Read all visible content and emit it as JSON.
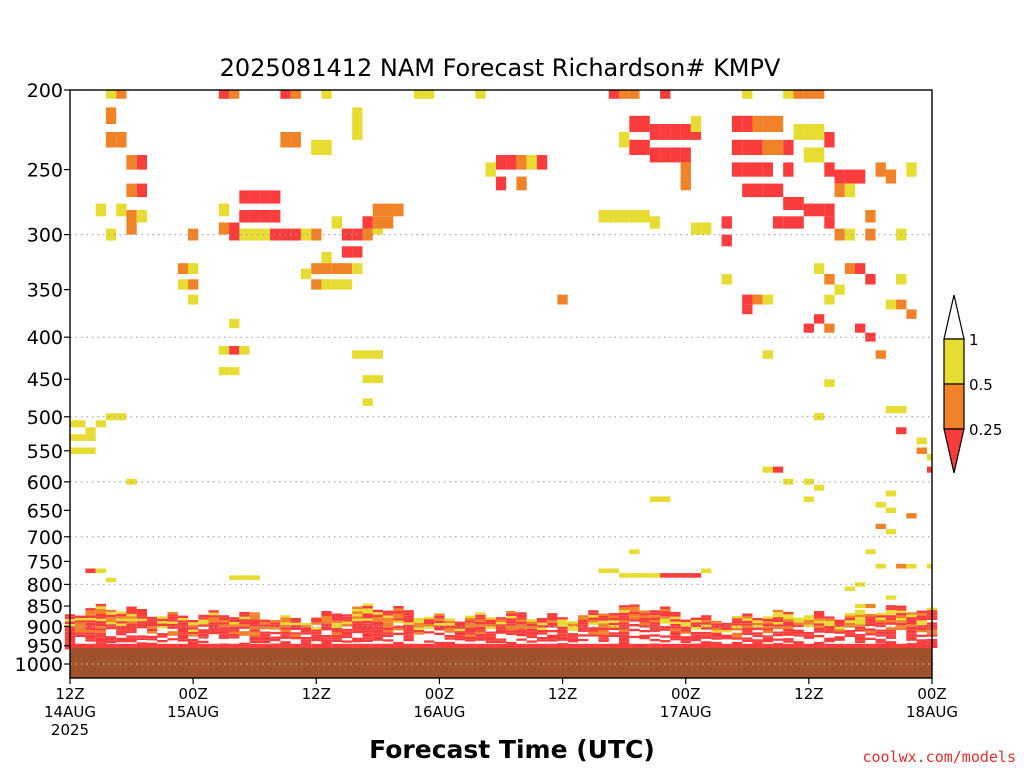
{
  "chart_data": {
    "type": "heatmap",
    "title": "2025081412 NAM Forecast Richardson# KMPV",
    "xlabel": "Forecast Time (UTC)",
    "credit": "coolwx.com/models",
    "y_axis": {
      "scale": "pressure",
      "range": [
        1040,
        200
      ],
      "ticks": [
        200,
        250,
        300,
        350,
        400,
        450,
        500,
        550,
        600,
        650,
        700,
        750,
        800,
        850,
        900,
        950,
        1000
      ],
      "tick_labels": [
        "200",
        "250",
        "300",
        "350",
        "400",
        "450",
        "500",
        "550",
        "600",
        "650",
        "700",
        "750",
        "800",
        "850",
        "900",
        "950",
        "1000"
      ],
      "dotted_grid_at": [
        300,
        400,
        500,
        600,
        700,
        800,
        900,
        1000
      ]
    },
    "x_axis": {
      "unit": "hours from 2025-08-14 12Z",
      "range": [
        0,
        84
      ],
      "ticks": [
        {
          "h": 0,
          "l1": "12Z",
          "l2": "14AUG",
          "l3": "2025"
        },
        {
          "h": 12,
          "l1": "00Z",
          "l2": "15AUG",
          "l3": ""
        },
        {
          "h": 24,
          "l1": "12Z",
          "l2": "",
          "l3": ""
        },
        {
          "h": 36,
          "l1": "00Z",
          "l2": "16AUG",
          "l3": ""
        },
        {
          "h": 48,
          "l1": "12Z",
          "l2": "",
          "l3": ""
        },
        {
          "h": 60,
          "l1": "00Z",
          "l2": "17AUG",
          "l3": ""
        },
        {
          "h": 72,
          "l1": "12Z",
          "l2": "",
          "l3": ""
        },
        {
          "h": 84,
          "l1": "00Z",
          "l2": "18AUG",
          "l3": ""
        }
      ]
    },
    "legend": {
      "placement": "right",
      "labels": [
        "1",
        "0.5",
        "0.25"
      ],
      "colors": {
        "low": "#fa3c3c",
        "mid": "#f08228",
        "high": "#e6dc32",
        "ground": "#a0522d"
      }
    },
    "cells": [
      [
        4,
        200,
        "high"
      ],
      [
        4,
        215,
        "orange"
      ],
      [
        5,
        200,
        "orange"
      ],
      [
        15,
        200,
        "red"
      ],
      [
        16,
        200,
        "orange"
      ],
      [
        21,
        200,
        "red"
      ],
      [
        22,
        200,
        "orange"
      ],
      [
        25,
        200,
        "high"
      ],
      [
        34,
        200,
        "high"
      ],
      [
        35,
        200,
        "high"
      ],
      [
        40,
        200,
        "high"
      ],
      [
        53,
        200,
        "red"
      ],
      [
        54,
        200,
        "orange"
      ],
      [
        55,
        200,
        "orange"
      ],
      [
        58,
        200,
        "red"
      ],
      [
        66,
        200,
        "high"
      ],
      [
        70,
        200,
        "high"
      ],
      [
        71,
        200,
        "orange"
      ],
      [
        72,
        200,
        "orange"
      ],
      [
        73,
        200,
        "orange"
      ],
      [
        28,
        215,
        "high"
      ],
      [
        28,
        225,
        "high"
      ],
      [
        4,
        230,
        "orange"
      ],
      [
        5,
        230,
        "orange"
      ],
      [
        21,
        230,
        "orange"
      ],
      [
        22,
        230,
        "orange"
      ],
      [
        24,
        235,
        "high"
      ],
      [
        25,
        235,
        "high"
      ],
      [
        55,
        220,
        "red"
      ],
      [
        56,
        220,
        "red"
      ],
      [
        57,
        225,
        "red"
      ],
      [
        58,
        225,
        "red"
      ],
      [
        59,
        225,
        "red"
      ],
      [
        60,
        225,
        "red"
      ],
      [
        61,
        225,
        "red"
      ],
      [
        55,
        235,
        "red"
      ],
      [
        56,
        235,
        "red"
      ],
      [
        57,
        240,
        "red"
      ],
      [
        58,
        240,
        "red"
      ],
      [
        59,
        240,
        "red"
      ],
      [
        60,
        240,
        "red"
      ],
      [
        60,
        250,
        "orange"
      ],
      [
        60,
        260,
        "orange"
      ],
      [
        54,
        230,
        "high"
      ],
      [
        61,
        220,
        "high"
      ],
      [
        65,
        220,
        "red"
      ],
      [
        66,
        220,
        "red"
      ],
      [
        67,
        220,
        "orange"
      ],
      [
        68,
        220,
        "orange"
      ],
      [
        69,
        220,
        "orange"
      ],
      [
        65,
        235,
        "red"
      ],
      [
        66,
        235,
        "red"
      ],
      [
        67,
        235,
        "red"
      ],
      [
        68,
        235,
        "orange"
      ],
      [
        69,
        235,
        "orange"
      ],
      [
        70,
        235,
        "red"
      ],
      [
        65,
        250,
        "red"
      ],
      [
        66,
        250,
        "red"
      ],
      [
        67,
        250,
        "red"
      ],
      [
        68,
        250,
        "red"
      ],
      [
        70,
        250,
        "red"
      ],
      [
        71,
        225,
        "high"
      ],
      [
        72,
        225,
        "high"
      ],
      [
        73,
        225,
        "high"
      ],
      [
        74,
        230,
        "red"
      ],
      [
        72,
        240,
        "high"
      ],
      [
        73,
        240,
        "high"
      ],
      [
        74,
        250,
        "red"
      ],
      [
        75,
        255,
        "red"
      ],
      [
        76,
        255,
        "red"
      ],
      [
        77,
        255,
        "red"
      ],
      [
        66,
        265,
        "red"
      ],
      [
        67,
        265,
        "red"
      ],
      [
        68,
        265,
        "red"
      ],
      [
        69,
        265,
        "red"
      ],
      [
        70,
        275,
        "red"
      ],
      [
        71,
        275,
        "red"
      ],
      [
        72,
        280,
        "red"
      ],
      [
        73,
        280,
        "red"
      ],
      [
        74,
        280,
        "red"
      ],
      [
        75,
        265,
        "orange"
      ],
      [
        76,
        265,
        "high"
      ],
      [
        79,
        250,
        "orange"
      ],
      [
        80,
        255,
        "orange"
      ],
      [
        82,
        250,
        "high"
      ],
      [
        6,
        245,
        "orange"
      ],
      [
        7,
        245,
        "red"
      ],
      [
        6,
        265,
        "orange"
      ],
      [
        7,
        265,
        "red"
      ],
      [
        3,
        280,
        "high"
      ],
      [
        5,
        280,
        "high"
      ],
      [
        6,
        285,
        "orange"
      ],
      [
        7,
        285,
        "high"
      ],
      [
        6,
        295,
        "orange"
      ],
      [
        42,
        245,
        "red"
      ],
      [
        43,
        245,
        "red"
      ],
      [
        44,
        245,
        "orange"
      ],
      [
        45,
        245,
        "high"
      ],
      [
        46,
        245,
        "red"
      ],
      [
        41,
        250,
        "high"
      ],
      [
        42,
        260,
        "red"
      ],
      [
        44,
        260,
        "orange"
      ],
      [
        17,
        270,
        "red"
      ],
      [
        18,
        270,
        "red"
      ],
      [
        19,
        270,
        "red"
      ],
      [
        20,
        270,
        "red"
      ],
      [
        17,
        285,
        "red"
      ],
      [
        18,
        285,
        "red"
      ],
      [
        19,
        285,
        "red"
      ],
      [
        20,
        285,
        "red"
      ],
      [
        15,
        280,
        "high"
      ],
      [
        15,
        295,
        "orange"
      ],
      [
        16,
        295,
        "red"
      ],
      [
        17,
        300,
        "high"
      ],
      [
        18,
        300,
        "high"
      ],
      [
        19,
        300,
        "high"
      ],
      [
        20,
        300,
        "red"
      ],
      [
        21,
        300,
        "red"
      ],
      [
        22,
        300,
        "red"
      ],
      [
        16,
        300,
        "red"
      ],
      [
        23,
        300,
        "high"
      ],
      [
        24,
        300,
        "orange"
      ],
      [
        26,
        290,
        "high"
      ],
      [
        27,
        300,
        "red"
      ],
      [
        28,
        300,
        "red"
      ],
      [
        29,
        300,
        "orange"
      ],
      [
        29,
        290,
        "red"
      ],
      [
        30,
        295,
        "high"
      ],
      [
        27,
        315,
        "red"
      ],
      [
        28,
        315,
        "red"
      ],
      [
        25,
        320,
        "high"
      ],
      [
        30,
        280,
        "orange"
      ],
      [
        31,
        280,
        "orange"
      ],
      [
        32,
        280,
        "orange"
      ],
      [
        30,
        290,
        "orange"
      ],
      [
        31,
        290,
        "orange"
      ],
      [
        24,
        330,
        "orange"
      ],
      [
        25,
        330,
        "orange"
      ],
      [
        26,
        330,
        "orange"
      ],
      [
        27,
        330,
        "orange"
      ],
      [
        24,
        345,
        "orange"
      ],
      [
        25,
        345,
        "high"
      ],
      [
        26,
        345,
        "high"
      ],
      [
        27,
        345,
        "high"
      ],
      [
        28,
        330,
        "high"
      ],
      [
        23,
        335,
        "high"
      ],
      [
        12,
        300,
        "orange"
      ],
      [
        11,
        330,
        "orange"
      ],
      [
        12,
        330,
        "high"
      ],
      [
        11,
        345,
        "high"
      ],
      [
        12,
        345,
        "orange"
      ],
      [
        12,
        360,
        "high"
      ],
      [
        4,
        300,
        "high"
      ],
      [
        52,
        285,
        "high"
      ],
      [
        53,
        285,
        "high"
      ],
      [
        54,
        285,
        "high"
      ],
      [
        55,
        285,
        "high"
      ],
      [
        56,
        285,
        "high"
      ],
      [
        57,
        290,
        "high"
      ],
      [
        61,
        295,
        "high"
      ],
      [
        62,
        295,
        "high"
      ],
      [
        64,
        290,
        "red"
      ],
      [
        64,
        305,
        "red"
      ],
      [
        69,
        290,
        "red"
      ],
      [
        70,
        290,
        "red"
      ],
      [
        71,
        290,
        "red"
      ],
      [
        74,
        290,
        "red"
      ],
      [
        75,
        300,
        "orange"
      ],
      [
        76,
        300,
        "high"
      ],
      [
        78,
        285,
        "orange"
      ],
      [
        78,
        300,
        "orange"
      ],
      [
        81,
        300,
        "high"
      ],
      [
        64,
        340,
        "high"
      ],
      [
        73,
        330,
        "high"
      ],
      [
        74,
        340,
        "orange"
      ],
      [
        76,
        330,
        "orange"
      ],
      [
        77,
        330,
        "red"
      ],
      [
        78,
        340,
        "red"
      ],
      [
        75,
        350,
        "high"
      ],
      [
        81,
        340,
        "high"
      ],
      [
        66,
        360,
        "red"
      ],
      [
        67,
        360,
        "orange"
      ],
      [
        68,
        360,
        "high"
      ],
      [
        66,
        370,
        "red"
      ],
      [
        48,
        360,
        "orange"
      ],
      [
        73,
        380,
        "red"
      ],
      [
        74,
        360,
        "high"
      ],
      [
        80,
        365,
        "high"
      ],
      [
        81,
        365,
        "orange"
      ],
      [
        82,
        375,
        "orange"
      ],
      [
        72,
        390,
        "red"
      ],
      [
        74,
        390,
        "orange"
      ],
      [
        77,
        390,
        "red"
      ],
      [
        78,
        400,
        "red"
      ],
      [
        79,
        420,
        "orange"
      ],
      [
        16,
        385,
        "high"
      ],
      [
        15,
        415,
        "high"
      ],
      [
        16,
        415,
        "red"
      ],
      [
        17,
        415,
        "high"
      ],
      [
        15,
        440,
        "high"
      ],
      [
        16,
        440,
        "high"
      ],
      [
        28,
        420,
        "high"
      ],
      [
        29,
        420,
        "high"
      ],
      [
        30,
        420,
        "high"
      ],
      [
        29,
        450,
        "high"
      ],
      [
        30,
        450,
        "high"
      ],
      [
        29,
        480,
        "high"
      ],
      [
        68,
        420,
        "high"
      ],
      [
        74,
        455,
        "high"
      ],
      [
        0,
        510,
        "high"
      ],
      [
        1,
        510,
        "high"
      ],
      [
        2,
        520,
        "high"
      ],
      [
        0,
        530,
        "high"
      ],
      [
        1,
        530,
        "high"
      ],
      [
        2,
        530,
        "high"
      ],
      [
        3,
        510,
        "high"
      ],
      [
        4,
        500,
        "high"
      ],
      [
        5,
        500,
        "high"
      ],
      [
        0,
        550,
        "high"
      ],
      [
        1,
        550,
        "high"
      ],
      [
        2,
        550,
        "high"
      ],
      [
        73,
        500,
        "high"
      ],
      [
        80,
        490,
        "high"
      ],
      [
        81,
        490,
        "high"
      ],
      [
        81,
        520,
        "red"
      ],
      [
        83,
        535,
        "high"
      ],
      [
        83,
        550,
        "orange"
      ],
      [
        84,
        560,
        "high"
      ],
      [
        84,
        580,
        "red"
      ],
      [
        68,
        580,
        "high"
      ],
      [
        69,
        580,
        "red"
      ],
      [
        70,
        600,
        "high"
      ],
      [
        72,
        630,
        "high"
      ],
      [
        73,
        610,
        "high"
      ],
      [
        72,
        600,
        "high"
      ],
      [
        80,
        620,
        "high"
      ],
      [
        79,
        640,
        "high"
      ],
      [
        80,
        650,
        "high"
      ],
      [
        79,
        680,
        "orange"
      ],
      [
        80,
        690,
        "high"
      ],
      [
        82,
        660,
        "orange"
      ],
      [
        57,
        630,
        "high"
      ],
      [
        58,
        630,
        "high"
      ],
      [
        6,
        600,
        "high"
      ],
      [
        78,
        730,
        "high"
      ],
      [
        79,
        760,
        "high"
      ],
      [
        81,
        760,
        "orange"
      ],
      [
        82,
        760,
        "high"
      ],
      [
        55,
        730,
        "high"
      ],
      [
        84,
        760,
        "high"
      ],
      [
        2,
        770,
        "red"
      ],
      [
        3,
        770,
        "high"
      ],
      [
        4,
        790,
        "high"
      ],
      [
        16,
        785,
        "high"
      ],
      [
        17,
        785,
        "high"
      ],
      [
        18,
        785,
        "high"
      ],
      [
        52,
        770,
        "high"
      ],
      [
        53,
        770,
        "high"
      ],
      [
        54,
        780,
        "high"
      ],
      [
        55,
        780,
        "high"
      ],
      [
        56,
        780,
        "high"
      ],
      [
        57,
        780,
        "high"
      ],
      [
        58,
        780,
        "red"
      ],
      [
        59,
        780,
        "red"
      ],
      [
        60,
        780,
        "red"
      ],
      [
        61,
        780,
        "red"
      ],
      [
        62,
        770,
        "high"
      ],
      [
        76,
        810,
        "high"
      ],
      [
        77,
        800,
        "high"
      ],
      [
        78,
        850,
        "orange"
      ],
      [
        77,
        850,
        "high"
      ],
      [
        80,
        830,
        "high"
      ]
    ]
  }
}
